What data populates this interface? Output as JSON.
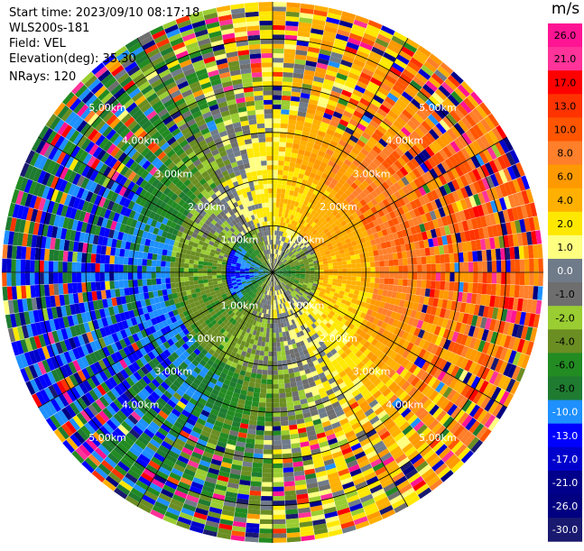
{
  "header": {
    "start_time": "Start time: 2023/09/10 08:17:18",
    "instrument": "WLS200s-181",
    "field": "Field: VEL",
    "elevation": "Elevation(deg): 35.30",
    "nrays": "NRays: 120"
  },
  "chart_data": {
    "type": "heatmap",
    "projection": "polar-ppi",
    "field": "VEL",
    "n_rays": 120,
    "max_range_km": 5.8,
    "range_rings_km": [
      1,
      2,
      3,
      4,
      5
    ],
    "range_labels": [
      "1.00km",
      "2.00km",
      "3.00km",
      "4.00km",
      "5.00km"
    ],
    "colorbar": {
      "unit": "m/s",
      "ticks": [
        "26.0",
        "21.0",
        "17.0",
        "13.0",
        "10.0",
        "8.0",
        "6.0",
        "4.0",
        "2.0",
        "1.0",
        "0.0",
        "-1.0",
        "-2.0",
        "-4.0",
        "-6.0",
        "-8.0",
        "-10.0",
        "-13.0",
        "-17.0",
        "-21.0",
        "-26.0",
        "-30.0"
      ],
      "colors": [
        "#ff1493",
        "#ff3399",
        "#ff0000",
        "#ff3300",
        "#ff5500",
        "#ff7f2a",
        "#ff9900",
        "#ffb000",
        "#ffe800",
        "#ffff80",
        "#707b8a",
        "#6e6e6e",
        "#9acd32",
        "#6b8e23",
        "#228b22",
        "#1e7b30",
        "#1e90ff",
        "#0000ff",
        "#0000cd",
        "#00008b",
        "#000080",
        "#191970"
      ]
    }
  }
}
